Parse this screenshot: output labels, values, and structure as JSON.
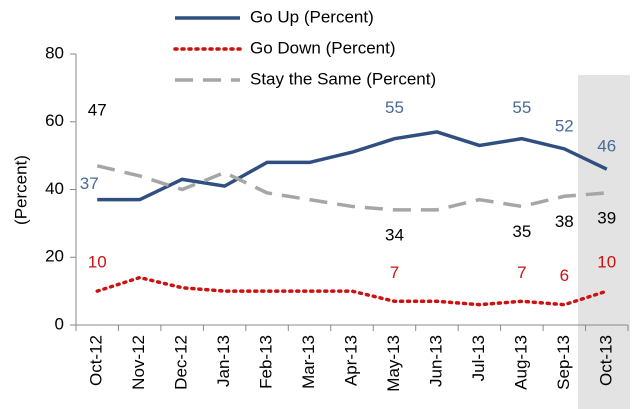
{
  "chart_data": {
    "type": "line",
    "y_label": "(Percent)",
    "categories": [
      "Oct-12",
      "Nov-12",
      "Dec-12",
      "Jan-13",
      "Feb-13",
      "Mar-13",
      "Apr-13",
      "May-13",
      "Jun-13",
      "Jul-13",
      "Aug-13",
      "Sep-13",
      "Oct-13"
    ],
    "series": [
      {
        "name": "Go Up (Percent)",
        "color": "#2e4f7f",
        "label_color": "#4a6a9a",
        "dash": "solid",
        "values": [
          37,
          37,
          43,
          41,
          48,
          48,
          51,
          55,
          57,
          53,
          55,
          52,
          46
        ]
      },
      {
        "name": "Go Down (Percent)",
        "color": "#cc1111",
        "label_color": "#cc1111",
        "dash": "dotted",
        "values": [
          10,
          14,
          11,
          10,
          10,
          10,
          10,
          7,
          7,
          6,
          7,
          6,
          10
        ]
      },
      {
        "name": "Stay the Same (Percent)",
        "color": "#a6a6a6",
        "label_color": "#000000",
        "dash": "dashed",
        "values": [
          47,
          44,
          40,
          45,
          39,
          37,
          35,
          34,
          34,
          37,
          35,
          38,
          39
        ]
      }
    ],
    "labeled_points": [
      0,
      7,
      10,
      11,
      12
    ],
    "ylim": [
      0,
      80
    ],
    "yticks": [
      0,
      20,
      40,
      60,
      80
    ],
    "grid": false
  }
}
